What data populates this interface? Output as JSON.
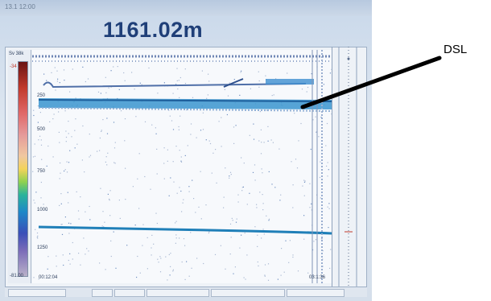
{
  "screen": {
    "depth_readout": "1161.02m",
    "header_small_text": "13.1 12:00",
    "scale": {
      "title": "Sv 38k",
      "top_value": "-34",
      "bottom_value": "-81.00"
    },
    "depth_ticks": [
      "250",
      "500",
      "750",
      "1000",
      "1250"
    ],
    "time_labels": {
      "left": "00:12:04",
      "right": "03:1:36"
    },
    "colorbar_colors": [
      "#6a1414",
      "#c0392b",
      "#e06868",
      "#f3d35a",
      "#8fd14f",
      "#2bb39a",
      "#1e88c8",
      "#3b4fb8",
      "#b9b0c8"
    ],
    "echo_color": "#1e88c8"
  },
  "annotation": {
    "label": "DSL",
    "arrow_color": "#000000"
  }
}
